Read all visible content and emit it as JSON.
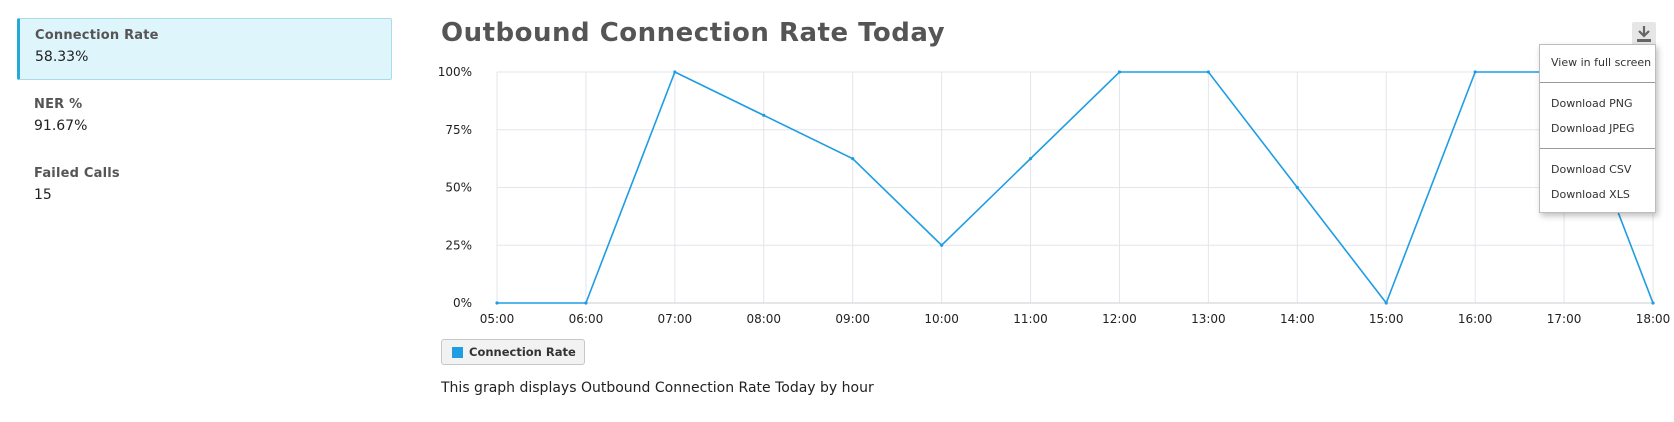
{
  "sidebar": {
    "metrics": [
      {
        "label": "Connection Rate",
        "value": "58.33%"
      },
      {
        "label": "NER %",
        "value": "91.67%"
      },
      {
        "label": "Failed Calls",
        "value": "15"
      }
    ]
  },
  "caption": "This graph displays Outbound Connection Rate Today by hour",
  "export_menu": {
    "icon": "download-icon",
    "items": {
      "fullscreen": "View in full screen",
      "png": "Download PNG",
      "jpeg": "Download JPEG",
      "csv": "Download CSV",
      "xls": "Download XLS"
    }
  },
  "chart_data": {
    "type": "line",
    "title": "Outbound Connection Rate Today",
    "xlabel": "",
    "ylabel": "",
    "x": [
      "05:00",
      "06:00",
      "07:00",
      "08:00",
      "09:00",
      "10:00",
      "11:00",
      "12:00",
      "13:00",
      "14:00",
      "15:00",
      "16:00",
      "17:00",
      "18:00"
    ],
    "series": [
      {
        "name": "Connection Rate",
        "values": [
          0,
          0,
          100,
          81.25,
          62.5,
          25,
          62.5,
          100,
          100,
          50,
          0,
          100,
          100,
          0
        ],
        "color": "#1f9de3"
      }
    ],
    "y_ticks": [
      "0%",
      "25%",
      "50%",
      "75%",
      "100%"
    ],
    "ylim": [
      0,
      100
    ],
    "grid": true,
    "legend": "bottom-left"
  }
}
